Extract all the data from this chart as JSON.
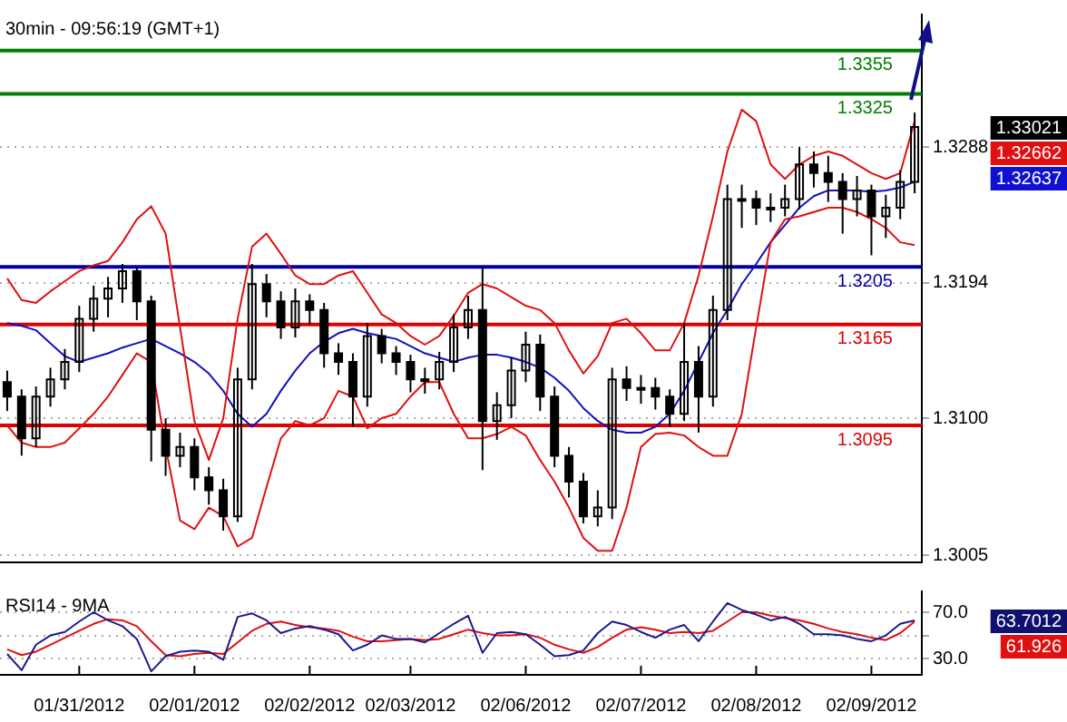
{
  "chart_data": [
    {
      "type": "candlestick",
      "title": "30min - 09:56:19 (GMT+1)",
      "categories": [
        null,
        null,
        null,
        null,
        null,
        null,
        null,
        null,
        null,
        null,
        null,
        null,
        null,
        null,
        null,
        null,
        null,
        null,
        null,
        null,
        null,
        null,
        null,
        null,
        null,
        null,
        null,
        null,
        null,
        null,
        null,
        null,
        null,
        null,
        null,
        null,
        null,
        null,
        null,
        null,
        null,
        null,
        null,
        null,
        null,
        null,
        null,
        null,
        null,
        null,
        null,
        null,
        null,
        null,
        null,
        null,
        null,
        null,
        null,
        null,
        null,
        null,
        null,
        null
      ],
      "ohlc": [
        [
          1.3125,
          1.3133,
          1.3105,
          1.3115
        ],
        [
          1.3115,
          1.312,
          1.3074,
          1.3086
        ],
        [
          1.3086,
          1.3122,
          1.308,
          1.3115
        ],
        [
          1.3115,
          1.3135,
          1.3108,
          1.3127
        ],
        [
          1.3127,
          1.3148,
          1.312,
          1.3139
        ],
        [
          1.3139,
          1.3178,
          1.3132,
          1.3169
        ],
        [
          1.3169,
          1.3192,
          1.316,
          1.3183
        ],
        [
          1.3183,
          1.3198,
          1.317,
          1.319
        ],
        [
          1.319,
          1.3207,
          1.318,
          1.3202
        ],
        [
          1.3202,
          1.3205,
          1.3168,
          1.3181
        ],
        [
          1.3181,
          1.3185,
          1.307,
          1.3092
        ],
        [
          1.3092,
          1.31,
          1.306,
          1.3074
        ],
        [
          1.3074,
          1.309,
          1.3066,
          1.308
        ],
        [
          1.308,
          1.3086,
          1.305,
          1.3059
        ],
        [
          1.3059,
          1.3066,
          1.304,
          1.305
        ],
        [
          1.305,
          1.3058,
          1.3022,
          1.3032
        ],
        [
          1.3032,
          1.3135,
          1.3028,
          1.3127
        ],
        [
          1.3127,
          1.3207,
          1.312,
          1.3193
        ],
        [
          1.3193,
          1.32,
          1.317,
          1.3181
        ],
        [
          1.3181,
          1.3188,
          1.3155,
          1.3163
        ],
        [
          1.3163,
          1.319,
          1.3156,
          1.3181
        ],
        [
          1.3181,
          1.3186,
          1.3165,
          1.3175
        ],
        [
          1.3175,
          1.318,
          1.3135,
          1.3145
        ],
        [
          1.3145,
          1.3152,
          1.313,
          1.3139
        ],
        [
          1.3139,
          1.3145,
          1.3094,
          1.3115
        ],
        [
          1.3115,
          1.3166,
          1.3108,
          1.3157
        ],
        [
          1.3157,
          1.3162,
          1.3138,
          1.3145
        ],
        [
          1.3145,
          1.315,
          1.313,
          1.3139
        ],
        [
          1.3139,
          1.3144,
          1.3118,
          1.3127
        ],
        [
          1.3127,
          1.3135,
          1.3117,
          1.3127
        ],
        [
          1.3127,
          1.3146,
          1.312,
          1.3139
        ],
        [
          1.3139,
          1.3172,
          1.3132,
          1.3163
        ],
        [
          1.3163,
          1.3185,
          1.3155,
          1.3175
        ],
        [
          1.3175,
          1.3205,
          1.3064,
          1.3098
        ],
        [
          1.3098,
          1.3118,
          1.3085,
          1.3109
        ],
        [
          1.3109,
          1.3142,
          1.31,
          1.3133
        ],
        [
          1.3133,
          1.316,
          1.3125,
          1.3151
        ],
        [
          1.3151,
          1.3158,
          1.3105,
          1.3115
        ],
        [
          1.3115,
          1.3122,
          1.3066,
          1.3074
        ],
        [
          1.3074,
          1.308,
          1.3045,
          1.3056
        ],
        [
          1.3056,
          1.3062,
          1.3027,
          1.3032
        ],
        [
          1.3032,
          1.305,
          1.3025,
          1.3038
        ],
        [
          1.3038,
          1.3135,
          1.303,
          1.3127
        ],
        [
          1.3127,
          1.3136,
          1.3112,
          1.3121
        ],
        [
          1.3121,
          1.313,
          1.311,
          1.3121
        ],
        [
          1.3121,
          1.3128,
          1.3106,
          1.3115
        ],
        [
          1.3115,
          1.312,
          1.3094,
          1.3103
        ],
        [
          1.3103,
          1.3166,
          1.3098,
          1.3139
        ],
        [
          1.3139,
          1.315,
          1.309,
          1.3115
        ],
        [
          1.3115,
          1.3185,
          1.3108,
          1.3175
        ],
        [
          1.3175,
          1.3262,
          1.3168,
          1.3252
        ],
        [
          1.3252,
          1.3262,
          1.3232,
          1.3252
        ],
        [
          1.3252,
          1.3258,
          1.3234,
          1.3246
        ],
        [
          1.3246,
          1.3256,
          1.3236,
          1.3246
        ],
        [
          1.3246,
          1.3262,
          1.324,
          1.3252
        ],
        [
          1.3252,
          1.3288,
          1.3245,
          1.3276
        ],
        [
          1.3276,
          1.3285,
          1.326,
          1.327
        ],
        [
          1.327,
          1.3282,
          1.325,
          1.3264
        ],
        [
          1.3264,
          1.327,
          1.3228,
          1.3252
        ],
        [
          1.3252,
          1.3268,
          1.324,
          1.3258
        ],
        [
          1.3258,
          1.3262,
          1.3213,
          1.324
        ],
        [
          1.324,
          1.3255,
          1.3225,
          1.3246
        ],
        [
          1.3246,
          1.3272,
          1.3238,
          1.3264
        ],
        [
          1.3264,
          1.3312,
          1.3256,
          1.3302
        ]
      ],
      "series": [
        {
          "type": "line",
          "color": "#e01010",
          "values": [
            1.3197,
            1.3182,
            1.318,
            1.3188,
            1.3195,
            1.3202,
            1.3206,
            1.3209,
            1.3222,
            1.3238,
            1.3247,
            1.3228,
            1.3163,
            1.3098,
            1.3071,
            1.31,
            1.3169,
            1.3219,
            1.3228,
            1.3214,
            1.3199,
            1.3193,
            1.3193,
            1.3199,
            1.3202,
            1.3187,
            1.3172,
            1.3166,
            1.3157,
            1.3151,
            1.3157,
            1.3171,
            1.3187,
            1.3193,
            1.319,
            1.3184,
            1.3178,
            1.3175,
            1.3166,
            1.3147,
            1.3131,
            1.3143,
            1.3166,
            1.3169,
            1.3159,
            1.3147,
            1.3147,
            1.3166,
            1.3199,
            1.324,
            1.3285,
            1.3314,
            1.3306,
            1.3276,
            1.3266,
            1.3276,
            1.3282,
            1.3285,
            1.3282,
            1.3276,
            1.327,
            1.3266,
            1.327,
            1.3306
          ]
        },
        {
          "type": "line",
          "color": "#e01010",
          "values": [
            1.3095,
            1.3083,
            1.308,
            1.308,
            1.3083,
            1.3093,
            1.3103,
            1.3115,
            1.313,
            1.3145,
            1.3139,
            1.308,
            1.3029,
            1.3023,
            1.3038,
            1.3032,
            1.3011,
            1.3017,
            1.3052,
            1.3086,
            1.3098,
            1.3095,
            1.31,
            1.3119,
            1.3115,
            1.3093,
            1.31,
            1.3103,
            1.3115,
            1.3125,
            1.3125,
            1.3103,
            1.3086,
            1.3086,
            1.3089,
            1.3094,
            1.3088,
            1.3071,
            1.3056,
            1.3038,
            1.3017,
            1.3008,
            1.3008,
            1.3038,
            1.308,
            1.3089,
            1.309,
            1.3088,
            1.308,
            1.3074,
            1.3074,
            1.3103,
            1.3163,
            1.3222,
            1.3238,
            1.324,
            1.3243,
            1.3246,
            1.3246,
            1.3243,
            1.3238,
            1.3232,
            1.3222,
            1.322
          ]
        },
        {
          "type": "line",
          "color": "#1010c0",
          "values": [
            1.3166,
            1.3164,
            1.3161,
            1.3152,
            1.3143,
            1.3139,
            1.3142,
            1.3145,
            1.3149,
            1.3152,
            1.3155,
            1.315,
            1.3145,
            1.3139,
            1.3131,
            1.3119,
            1.3103,
            1.3094,
            1.3103,
            1.3119,
            1.3133,
            1.3145,
            1.3153,
            1.3159,
            1.3162,
            1.3159,
            1.3157,
            1.3155,
            1.315,
            1.3145,
            1.3142,
            1.3139,
            1.3142,
            1.3144,
            1.3144,
            1.3142,
            1.3139,
            1.3135,
            1.3128,
            1.3119,
            1.3107,
            1.3098,
            1.3092,
            1.309,
            1.309,
            1.3094,
            1.3103,
            1.3119,
            1.3139,
            1.3159,
            1.3175,
            1.3193,
            1.3207,
            1.3222,
            1.3234,
            1.3246,
            1.3254,
            1.3258,
            1.3258,
            1.3258,
            1.3257,
            1.3258,
            1.326,
            1.3264
          ]
        }
      ],
      "ylim": [
        1.3,
        1.338
      ],
      "yticks": [
        1.3005,
        {
          "value": 1.31,
          "label": "1.3100"
        },
        1.3194,
        1.3288
      ],
      "ref_lines": [
        {
          "axis": "y",
          "value": 1.3355,
          "label": "1.3355",
          "color": "#008000"
        },
        {
          "axis": "y",
          "value": 1.3325,
          "label": "1.3325",
          "color": "#008000"
        },
        {
          "axis": "y",
          "value": 1.3205,
          "label": "1.3205",
          "color": "#0000a0"
        },
        {
          "axis": "y",
          "value": 1.3165,
          "label": "1.3165",
          "color": "#e00000"
        },
        {
          "axis": "y",
          "value": 1.3095,
          "label": "1.3095",
          "color": "#e00000"
        }
      ],
      "annotations": [
        "1.33021",
        "1.32662",
        "1.32637"
      ],
      "grid": "y",
      "tick_labels": "y"
    },
    {
      "type": "line",
      "title": "RSI14 - 9MA",
      "categories": [
        null,
        null,
        null,
        null,
        null,
        "01/31/2012",
        null,
        null,
        null,
        null,
        null,
        null,
        null,
        "02/01/2012",
        null,
        null,
        null,
        null,
        null,
        null,
        null,
        "02/02/2012",
        null,
        null,
        null,
        null,
        null,
        null,
        "02/03/2012",
        null,
        null,
        null,
        null,
        null,
        null,
        null,
        "02/06/2012",
        null,
        null,
        null,
        null,
        null,
        null,
        null,
        "02/07/2012",
        null,
        null,
        null,
        null,
        null,
        null,
        null,
        "02/08/2012",
        null,
        null,
        null,
        null,
        null,
        null,
        null,
        "02/09/2012",
        null,
        null,
        null
      ],
      "series": [
        {
          "color": "#1a1a8c",
          "values": [
            34,
            20,
            42,
            50,
            53,
            62,
            70,
            63,
            58,
            47,
            19,
            32,
            36,
            37,
            36,
            29,
            66,
            69,
            63,
            52,
            56,
            58,
            55,
            51,
            37,
            42,
            50,
            47,
            47,
            44,
            52,
            60,
            67,
            35,
            52,
            53,
            51,
            42,
            32,
            33,
            37,
            52,
            62,
            59,
            53,
            48,
            55,
            59,
            45,
            62,
            78,
            72,
            68,
            63,
            66,
            60,
            51,
            51,
            50,
            47,
            45,
            50,
            60,
            63
          ]
        },
        {
          "color": "#e01010",
          "values": [
            38,
            33,
            36,
            42,
            48,
            54,
            60,
            64,
            63,
            58,
            45,
            33,
            32,
            34,
            35,
            34,
            44,
            54,
            60,
            62,
            59,
            57,
            56,
            54,
            49,
            45,
            45,
            46,
            47,
            46,
            47,
            51,
            55,
            52,
            50,
            50,
            51,
            48,
            42,
            38,
            35,
            40,
            48,
            55,
            57,
            55,
            52,
            53,
            52,
            54,
            62,
            70,
            70,
            67,
            65,
            63,
            60,
            56,
            53,
            51,
            48,
            46,
            52,
            62
          ]
        }
      ],
      "ylim": [
        16,
        88
      ],
      "yticks": [
        {
          "value": 30,
          "label": "30.0"
        },
        {
          "value": 50,
          "label": null
        },
        {
          "value": 70,
          "label": "70.0"
        }
      ],
      "annotations": [
        "63.7012",
        "61.926"
      ],
      "grid": "y"
    }
  ]
}
